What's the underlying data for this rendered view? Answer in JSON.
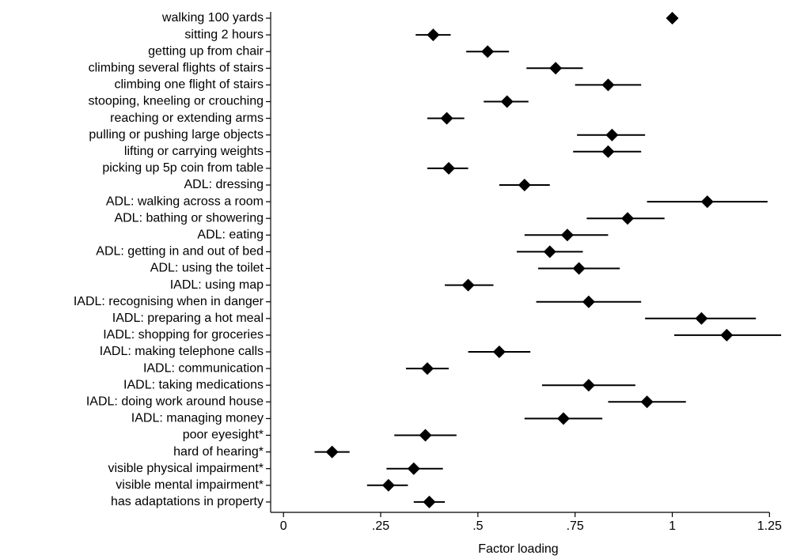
{
  "chart_data": {
    "type": "dot-errorbar",
    "x_label": "Factor loading",
    "categories": [
      "walking 100 yards",
      "sitting 2 hours",
      "getting up from chair",
      "climbing several flights of stairs",
      "climbing one flight of stairs",
      "stooping, kneeling or crouching",
      "reaching or extending arms",
      "pulling or pushing large objects",
      "lifting or carrying weights",
      "picking up 5p coin from table",
      "ADL: dressing",
      "ADL: walking across a room",
      "ADL: bathing or showering",
      "ADL: eating",
      "ADL: getting in and out of bed",
      "ADL: using the toilet",
      "IADL: using map",
      "IADL: recognising when in danger",
      "IADL: preparing a hot meal",
      "IADL: shopping for groceries",
      "IADL: making telephone calls",
      "IADL: communication",
      "IADL: taking medications",
      "IADL: doing work around house",
      "IADL: managing money",
      "poor eyesight*",
      "hard of hearing*",
      "visible physical impairment*",
      "visible mental impairment*",
      "has adaptations in property"
    ],
    "series": [
      {
        "color": "#000000",
        "values": [
          1.0,
          0.385,
          0.525,
          0.7,
          0.835,
          0.575,
          0.42,
          0.845,
          0.835,
          0.425,
          0.62,
          1.09,
          0.885,
          0.73,
          0.685,
          0.76,
          0.475,
          0.785,
          1.075,
          1.14,
          0.555,
          0.37,
          0.785,
          0.935,
          0.72,
          0.365,
          0.125,
          0.335,
          0.27,
          0.375
        ],
        "lower": [
          null,
          0.34,
          0.47,
          0.625,
          0.75,
          0.515,
          0.37,
          0.755,
          0.745,
          0.37,
          0.555,
          0.935,
          0.78,
          0.62,
          0.6,
          0.655,
          0.415,
          0.65,
          0.93,
          1.005,
          0.475,
          0.315,
          0.665,
          0.835,
          0.62,
          0.285,
          0.08,
          0.265,
          0.215,
          0.335
        ],
        "upper": [
          null,
          0.43,
          0.58,
          0.77,
          0.92,
          0.63,
          0.465,
          0.93,
          0.92,
          0.475,
          0.685,
          1.245,
          0.98,
          0.835,
          0.77,
          0.865,
          0.54,
          0.92,
          1.215,
          1.28,
          0.635,
          0.425,
          0.905,
          1.035,
          0.82,
          0.445,
          0.17,
          0.41,
          0.32,
          0.415
        ]
      }
    ],
    "xlim": [
      -0.033,
      1.29
    ],
    "xticks": [
      0,
      {
        "value": 0.25,
        "label": ".25"
      },
      {
        "value": 0.5,
        "label": ".5"
      },
      {
        "value": 0.75,
        "label": ".75"
      },
      1,
      1.25
    ]
  }
}
